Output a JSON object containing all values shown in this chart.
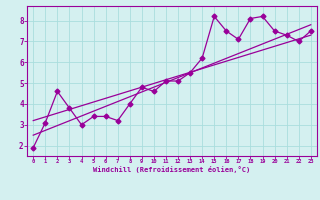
{
  "xlabel": "Windchill (Refroidissement éolien,°C)",
  "background_color": "#d4f0f0",
  "grid_color": "#aadddd",
  "line_color": "#990099",
  "xlim": [
    -0.5,
    23.5
  ],
  "ylim": [
    1.5,
    8.7
  ],
  "xticks": [
    0,
    1,
    2,
    3,
    4,
    5,
    6,
    7,
    8,
    9,
    10,
    11,
    12,
    13,
    14,
    15,
    16,
    17,
    18,
    19,
    20,
    21,
    22,
    23
  ],
  "yticks": [
    2,
    3,
    4,
    5,
    6,
    7,
    8
  ],
  "line1_x": [
    0,
    1,
    2,
    3,
    4,
    5,
    6,
    7,
    8,
    9,
    10,
    11,
    12,
    13,
    14,
    15,
    16,
    17,
    18,
    19,
    20,
    21,
    22,
    23
  ],
  "line1_y": [
    1.9,
    3.1,
    4.6,
    3.8,
    3.0,
    3.4,
    3.4,
    3.2,
    4.0,
    4.8,
    4.6,
    5.1,
    5.1,
    5.5,
    6.2,
    8.2,
    7.5,
    7.1,
    8.1,
    8.2,
    7.5,
    7.3,
    7.0,
    7.5
  ],
  "line2_x": [
    0,
    23
  ],
  "line2_y": [
    2.5,
    7.8
  ],
  "line3_x": [
    0,
    23
  ],
  "line3_y": [
    3.2,
    7.3
  ]
}
